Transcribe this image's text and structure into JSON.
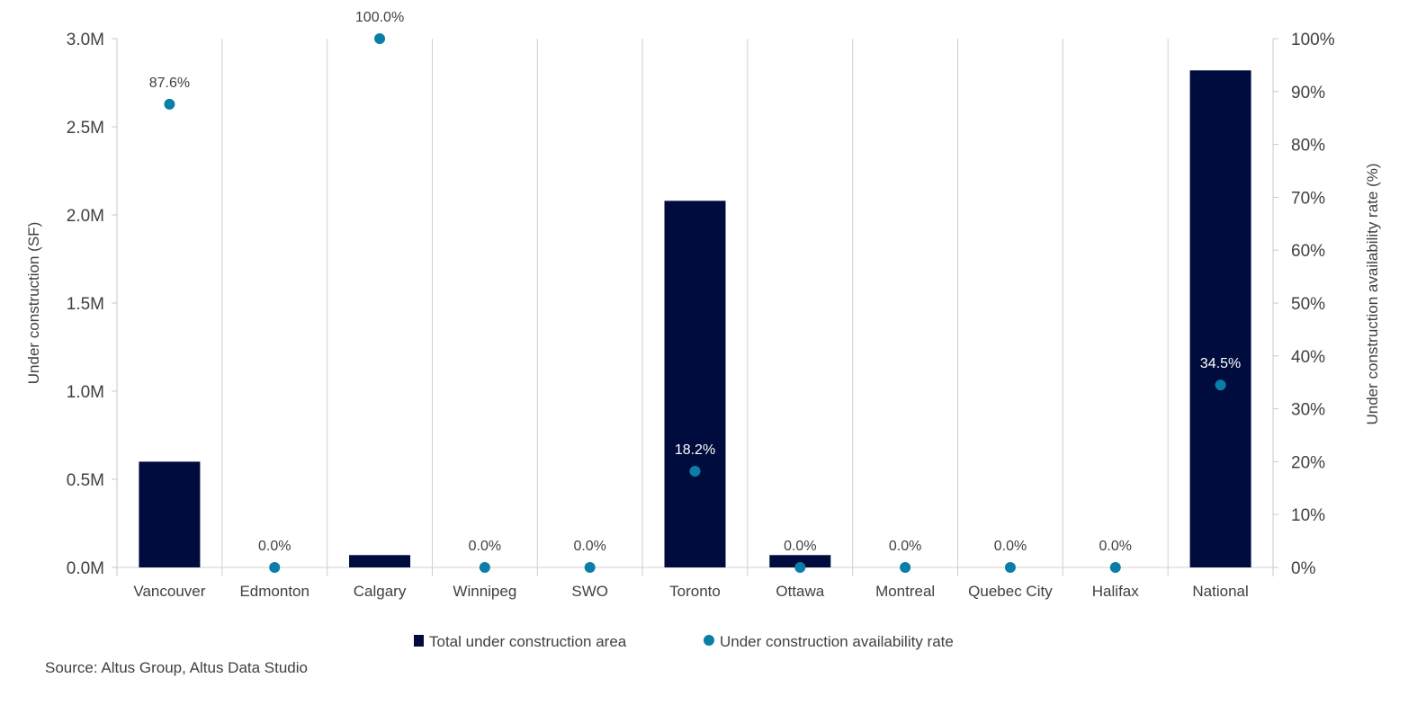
{
  "chart_data": {
    "type": "bar",
    "categories": [
      "Vancouver",
      "Edmonton",
      "Calgary",
      "Winnipeg",
      "SWO",
      "Toronto",
      "Ottawa",
      "Montreal",
      "Quebec City",
      "Halifax",
      "National"
    ],
    "series": [
      {
        "name": "Total under construction area",
        "type": "bar",
        "axis": "left",
        "color": "#000c3d",
        "values": [
          600000,
          0,
          70000,
          0,
          0,
          2080000,
          70000,
          0,
          0,
          0,
          2820000
        ]
      },
      {
        "name": "Under construction availability rate",
        "type": "scatter",
        "axis": "right",
        "color": "#0a7ea8",
        "values": [
          87.6,
          0.0,
          100.0,
          0.0,
          0.0,
          18.2,
          0.0,
          0.0,
          0.0,
          0.0,
          34.5
        ],
        "labels": [
          "87.6%",
          "0.0%",
          "100.0%",
          "0.0%",
          "0.0%",
          "18.2%",
          "0.0%",
          "0.0%",
          "0.0%",
          "0.0%",
          "34.5%"
        ]
      }
    ],
    "ylabel": "Under construction (SF)",
    "y2label": "Under construction availability rate (%)",
    "ylim": [
      0,
      3000000
    ],
    "y2lim": [
      0,
      100
    ],
    "yticks": [
      "0.0M",
      "0.5M",
      "1.0M",
      "1.5M",
      "2.0M",
      "2.5M",
      "3.0M"
    ],
    "y2ticks": [
      "0%",
      "10%",
      "20%",
      "30%",
      "40%",
      "50%",
      "60%",
      "70%",
      "80%",
      "90%",
      "100%"
    ],
    "grid": "vertical category separators",
    "legend": "bottom-center"
  },
  "source": "Source: Altus Group, Altus Data Studio"
}
